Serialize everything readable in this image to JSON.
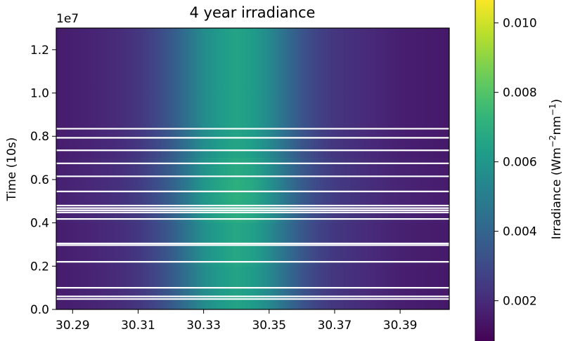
{
  "chart_data": {
    "type": "heatmap",
    "title": "4 year irradiance",
    "xlabel": "",
    "ylabel": "Time (10s)",
    "y_offset_text": "1e7",
    "xlim": [
      30.285,
      30.405
    ],
    "ylim": [
      0.0,
      1.3
    ],
    "x_ticks": [
      30.29,
      30.31,
      30.33,
      30.35,
      30.37,
      30.39
    ],
    "y_ticks": [
      0.0,
      0.2,
      0.4,
      0.6,
      0.8,
      1.0,
      1.2
    ],
    "colorbar": {
      "label_main": "Irradiance (Wm",
      "label_sup1": "−2",
      "label_mid": "nm",
      "label_sup2": "−1",
      "label_end": ")",
      "ticks": [
        0.002,
        0.004,
        0.006,
        0.008,
        0.01
      ],
      "range": [
        0.0008,
        0.0107
      ],
      "colormap": "viridis"
    },
    "profile": {
      "wavelength": [
        30.285,
        30.295,
        30.305,
        30.31,
        30.315,
        30.32,
        30.325,
        30.33,
        30.335,
        30.34,
        30.345,
        30.35,
        30.355,
        30.36,
        30.365,
        30.37,
        30.38,
        30.39,
        30.405
      ],
      "irradiance": [
        0.0016,
        0.0018,
        0.0021,
        0.0024,
        0.0029,
        0.0036,
        0.0046,
        0.0057,
        0.0063,
        0.0067,
        0.0064,
        0.0056,
        0.0045,
        0.0035,
        0.0028,
        0.0024,
        0.002,
        0.0017,
        0.0015
      ]
    },
    "time_modulation": [
      {
        "t": 0.0,
        "factor": 0.97
      },
      {
        "t": 0.2,
        "factor": 0.98
      },
      {
        "t": 0.4,
        "factor": 1.02
      },
      {
        "t": 0.5,
        "factor": 1.06
      },
      {
        "t": 0.6,
        "factor": 1.04
      },
      {
        "t": 0.7,
        "factor": 1.0
      },
      {
        "t": 0.8,
        "factor": 0.97
      },
      {
        "t": 1.0,
        "factor": 0.98
      },
      {
        "t": 1.3,
        "factor": 0.97
      }
    ],
    "data_gaps_y": [
      0.835,
      0.793,
      0.735,
      0.675,
      0.615,
      0.545,
      0.48,
      0.468,
      0.458,
      0.448,
      0.418,
      0.305,
      0.297,
      0.22,
      0.1,
      0.06,
      0.048
    ],
    "grid": false
  }
}
